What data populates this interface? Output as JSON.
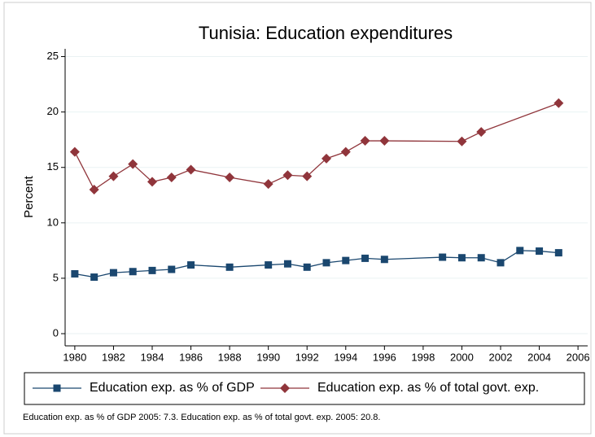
{
  "chart_data": {
    "type": "line",
    "title": "Tunisia: Education expenditures",
    "y_label": "Percent",
    "note": "Education exp. as % of GDP 2005: 7.3. Education exp. as % of total govt. exp. 2005: 20.8.",
    "xlim": [
      1979.5,
      2006.5
    ],
    "xticks": [
      1980,
      1982,
      1984,
      1986,
      1988,
      1990,
      1992,
      1994,
      1996,
      1998,
      2000,
      2002,
      2004,
      2006
    ],
    "ylim": [
      -1.1,
      25.7
    ],
    "yticks": [
      0,
      5,
      10,
      15,
      20,
      25
    ],
    "grid": true,
    "legend": "bottom",
    "series": [
      {
        "name": "Education exp. as % of GDP",
        "color": "#1a476f",
        "marker": "square",
        "x": [
          1980,
          1981,
          1982,
          1983,
          1984,
          1985,
          1986,
          1988,
          1990,
          1991,
          1992,
          1993,
          1994,
          1995,
          1996,
          1999,
          2000,
          2001,
          2002,
          2003,
          2004,
          2005
        ],
        "values": [
          5.4,
          5.1,
          5.5,
          5.6,
          5.7,
          5.8,
          6.2,
          6.0,
          6.2,
          6.3,
          6.0,
          6.4,
          6.6,
          6.8,
          6.7,
          6.9,
          6.85,
          6.85,
          6.4,
          7.5,
          7.45,
          7.3
        ]
      },
      {
        "name": "Education exp. as % of total govt. exp.",
        "color": "#90353b",
        "marker": "diamond",
        "x": [
          1980,
          1981,
          1982,
          1983,
          1984,
          1985,
          1986,
          1988,
          1990,
          1991,
          1992,
          1993,
          1994,
          1995,
          1996,
          2000,
          2001,
          2005
        ],
        "values": [
          16.4,
          13.0,
          14.2,
          15.3,
          13.7,
          14.1,
          14.8,
          14.1,
          13.5,
          14.3,
          14.2,
          15.8,
          16.4,
          17.4,
          17.4,
          17.35,
          18.2,
          20.8
        ]
      }
    ]
  }
}
